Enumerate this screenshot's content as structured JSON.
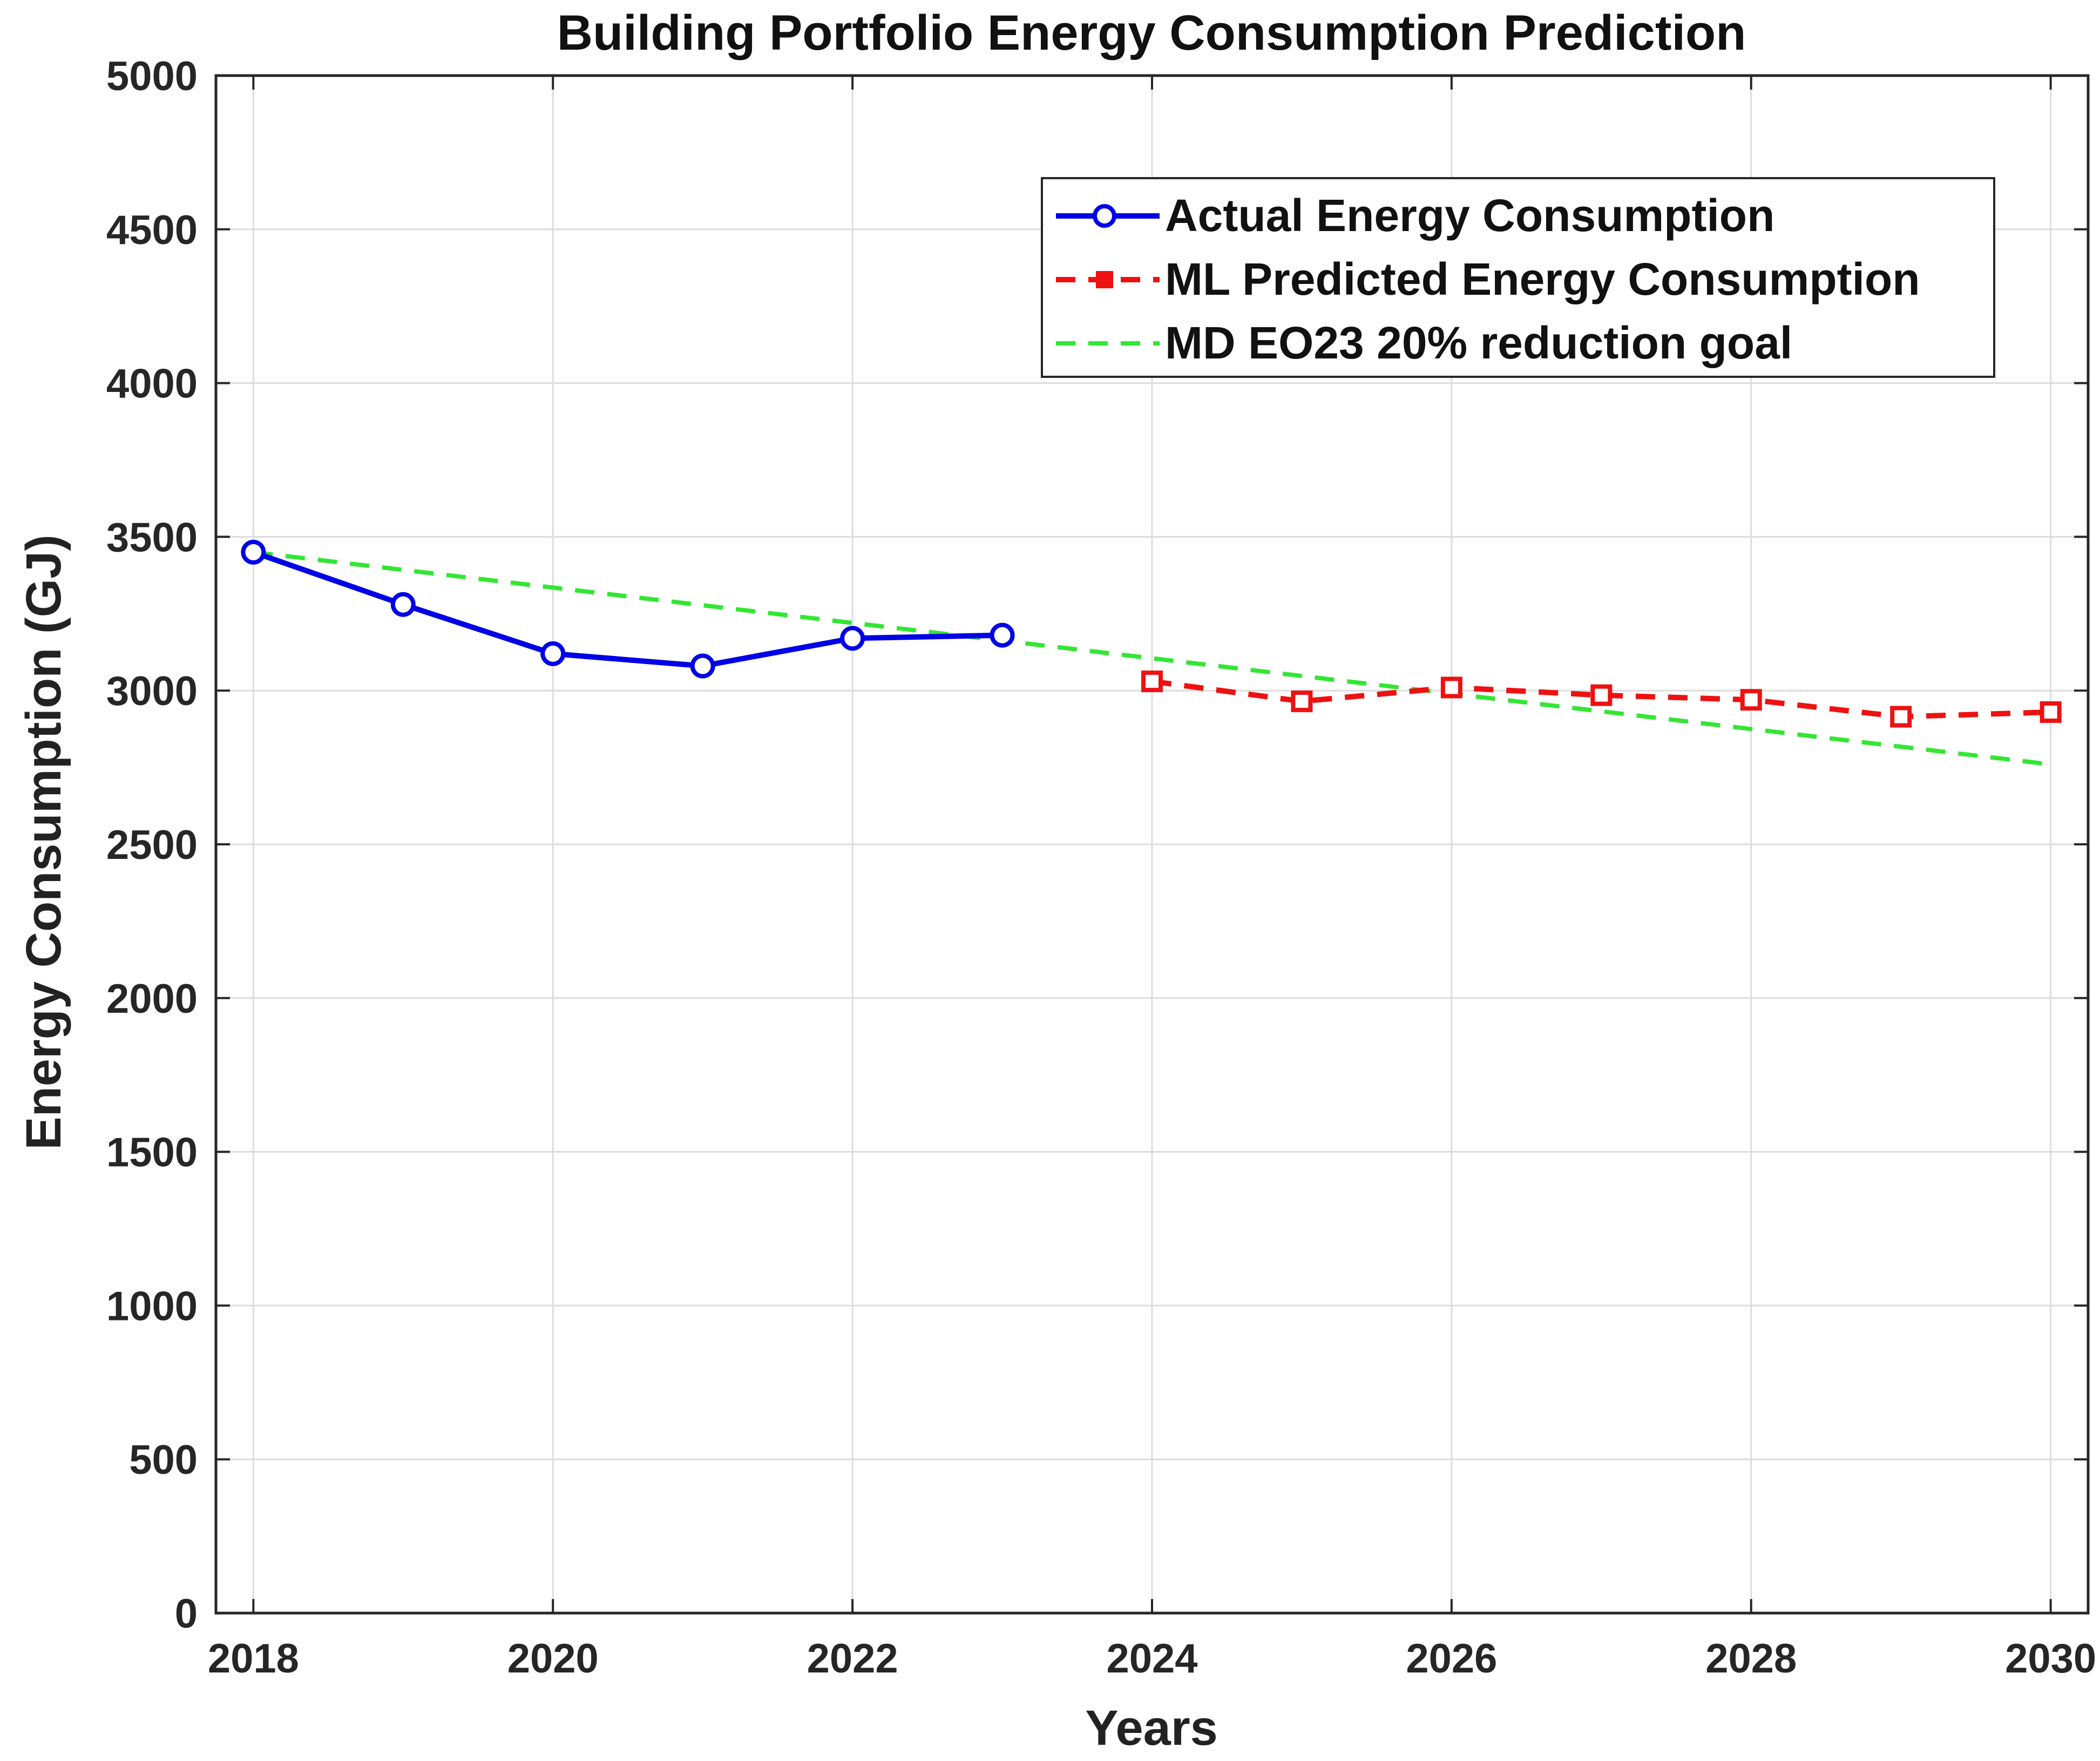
{
  "chart_data": {
    "type": "line",
    "title": "Building Portfolio Energy Consumption Prediction",
    "xlabel": "Years",
    "ylabel": "Energy Consumption (GJ)",
    "xlim": [
      2017.75,
      2030.25
    ],
    "ylim": [
      0,
      5000
    ],
    "x_ticks": [
      2018,
      2020,
      2022,
      2024,
      2026,
      2028,
      2030
    ],
    "y_ticks": [
      0,
      500,
      1000,
      1500,
      2000,
      2500,
      3000,
      3500,
      4000,
      4500,
      5000
    ],
    "grid": true,
    "legend_position": "top-right",
    "series": [
      {
        "name": "Actual Energy Consumption",
        "color": "#0000e6",
        "style": "solid",
        "marker": "circle",
        "x": [
          2018,
          2019,
          2020,
          2021,
          2022,
          2023
        ],
        "values": [
          3450,
          3280,
          3120,
          3080,
          3170,
          3180
        ]
      },
      {
        "name": "ML Predicted Energy Consumption",
        "color": "#ee1111",
        "style": "dashed",
        "marker": "square",
        "x": [
          2024,
          2025,
          2026,
          2027,
          2028,
          2029,
          2030
        ],
        "values": [
          3030,
          2965,
          3010,
          2985,
          2970,
          2915,
          2930
        ]
      },
      {
        "name": "MD EO23 20% reduction goal",
        "color": "#33e633",
        "style": "dashed",
        "marker": "none",
        "x": [
          2018,
          2030
        ],
        "values": [
          3450,
          2760
        ]
      }
    ]
  }
}
